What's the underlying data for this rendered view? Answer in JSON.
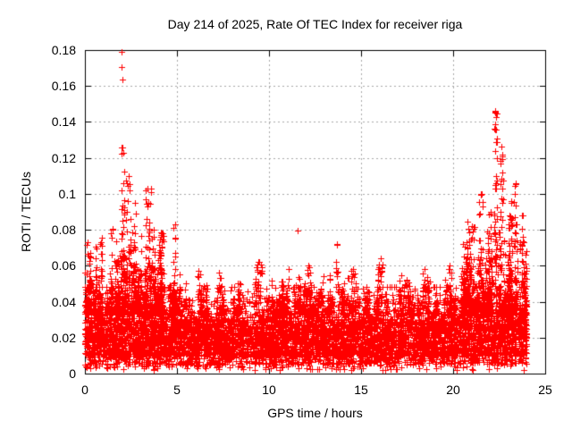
{
  "chart_data": {
    "type": "scatter",
    "title": "Day 214 of 2025, Rate Of TEC Index for receiver riga",
    "xlabel": "GPS time / hours",
    "ylabel": "ROTI / TECUs",
    "xlim": [
      0,
      25
    ],
    "ylim": [
      0,
      0.18
    ],
    "xticks": [
      0,
      5,
      10,
      15,
      20,
      25
    ],
    "yticks": [
      0,
      0.02,
      0.04,
      0.06,
      0.08,
      0.1,
      0.12,
      0.14,
      0.16,
      0.18
    ],
    "grid": true,
    "grid_style": "dashed",
    "legend": "none",
    "marker": "plus",
    "marker_size": 7,
    "colors": {
      "points": "#ff0000",
      "grid": "#a9a9a9",
      "frame": "#000000",
      "background": "#ffffff",
      "text": "#000000"
    },
    "series": [
      {
        "name": "ROTI",
        "x_data_range": [
          0,
          24
        ],
        "generation": {
          "seed": 7,
          "base_band": {
            "count": 6500,
            "mixture": [
              {
                "weight": 0.7,
                "type": "uniform",
                "lo": 0.01,
                "hi": 0.03
              },
              {
                "weight": 0.12,
                "type": "uniform",
                "lo": 0.005,
                "hi": 0.012
              },
              {
                "weight": 0.15,
                "type": "exp",
                "offset": 0.03,
                "mean": 0.006,
                "cap": 0.048
              },
              {
                "weight": 0.03,
                "type": "uniform",
                "lo": 0.002,
                "hi": 0.007
              }
            ]
          },
          "activity_periods": [
            {
              "x_start": 0.0,
              "x_end": 5.2,
              "columns": 60,
              "col_points_min": 8,
              "col_points_max": 24,
              "ymax_lo": 0.045,
              "ymax_hi": 0.092,
              "bias": 2.2
            },
            {
              "x_start": 5.2,
              "x_end": 20.3,
              "columns": 85,
              "col_points_min": 4,
              "col_points_max": 16,
              "ymax_lo": 0.042,
              "ymax_hi": 0.062,
              "bias": 2.6
            },
            {
              "x_start": 20.3,
              "x_end": 24.0,
              "columns": 50,
              "col_points_min": 6,
              "col_points_max": 22,
              "ymax_lo": 0.045,
              "ymax_hi": 0.095,
              "bias": 2.0
            }
          ],
          "spike_clusters": [
            {
              "x": 0.15,
              "spread": 0.15,
              "y_base": 0.045,
              "y_top": 0.073,
              "count": 14
            },
            {
              "x": 2.05,
              "spread": 0.12,
              "y_base": 0.05,
              "y_top": 0.126,
              "count": 40
            },
            {
              "x": 2.35,
              "spread": 0.15,
              "y_base": 0.05,
              "y_top": 0.11,
              "count": 25
            },
            {
              "x": 2.75,
              "spread": 0.15,
              "y_base": 0.045,
              "y_top": 0.095,
              "count": 18
            },
            {
              "x": 3.45,
              "spread": 0.2,
              "y_base": 0.05,
              "y_top": 0.103,
              "count": 30
            },
            {
              "x": 4.2,
              "spread": 0.15,
              "y_base": 0.045,
              "y_top": 0.078,
              "count": 12
            },
            {
              "x": 4.85,
              "spread": 0.1,
              "y_base": 0.045,
              "y_top": 0.083,
              "count": 12
            },
            {
              "x": 6.2,
              "spread": 0.12,
              "y_base": 0.04,
              "y_top": 0.057,
              "count": 10
            },
            {
              "x": 7.3,
              "spread": 0.15,
              "y_base": 0.04,
              "y_top": 0.056,
              "count": 10
            },
            {
              "x": 9.4,
              "spread": 0.2,
              "y_base": 0.038,
              "y_top": 0.062,
              "count": 28
            },
            {
              "x": 11.05,
              "spread": 0.1,
              "y_base": 0.04,
              "y_top": 0.058,
              "count": 8
            },
            {
              "x": 12.1,
              "spread": 0.15,
              "y_base": 0.04,
              "y_top": 0.06,
              "count": 12
            },
            {
              "x": 13.7,
              "spread": 0.08,
              "y_base": 0.048,
              "y_top": 0.072,
              "count": 10
            },
            {
              "x": 14.6,
              "spread": 0.12,
              "y_base": 0.04,
              "y_top": 0.058,
              "count": 10
            },
            {
              "x": 16.0,
              "spread": 0.15,
              "y_base": 0.04,
              "y_top": 0.064,
              "count": 18
            },
            {
              "x": 17.5,
              "spread": 0.12,
              "y_base": 0.038,
              "y_top": 0.052,
              "count": 10
            },
            {
              "x": 18.4,
              "spread": 0.15,
              "y_base": 0.04,
              "y_top": 0.058,
              "count": 14
            },
            {
              "x": 19.6,
              "spread": 0.12,
              "y_base": 0.038,
              "y_top": 0.052,
              "count": 10
            },
            {
              "x": 20.6,
              "spread": 0.15,
              "y_base": 0.045,
              "y_top": 0.072,
              "count": 16
            },
            {
              "x": 21.0,
              "spread": 0.15,
              "y_base": 0.05,
              "y_top": 0.082,
              "count": 20
            },
            {
              "x": 21.5,
              "spread": 0.12,
              "y_base": 0.05,
              "y_top": 0.1,
              "count": 24
            },
            {
              "x": 22.05,
              "spread": 0.12,
              "y_base": 0.05,
              "y_top": 0.09,
              "count": 20
            },
            {
              "x": 22.3,
              "spread": 0.08,
              "y_base": 0.06,
              "y_top": 0.146,
              "count": 34
            },
            {
              "x": 22.65,
              "spread": 0.1,
              "y_base": 0.055,
              "y_top": 0.122,
              "count": 22
            },
            {
              "x": 23.1,
              "spread": 0.12,
              "y_base": 0.05,
              "y_top": 0.096,
              "count": 20
            },
            {
              "x": 23.4,
              "spread": 0.1,
              "y_base": 0.05,
              "y_top": 0.106,
              "count": 26
            },
            {
              "x": 23.75,
              "spread": 0.1,
              "y_base": 0.045,
              "y_top": 0.088,
              "count": 16
            },
            {
              "x": 23.95,
              "spread": 0.06,
              "y_base": 0.015,
              "y_top": 0.068,
              "count": 30
            }
          ],
          "outliers": [
            [
              1.97,
              0.179
            ],
            [
              2.0,
              0.1705
            ],
            [
              2.03,
              0.1635
            ],
            [
              11.53,
              0.0795
            ],
            [
              22.28,
              0.1455
            ],
            [
              22.33,
              0.1425
            ],
            [
              22.3,
              0.1385
            ],
            [
              22.36,
              0.131
            ],
            [
              22.62,
              0.1265
            ],
            [
              22.66,
              0.121
            ],
            [
              13.7,
              0.0715
            ],
            [
              23.42,
              0.1055
            ]
          ]
        }
      }
    ]
  }
}
